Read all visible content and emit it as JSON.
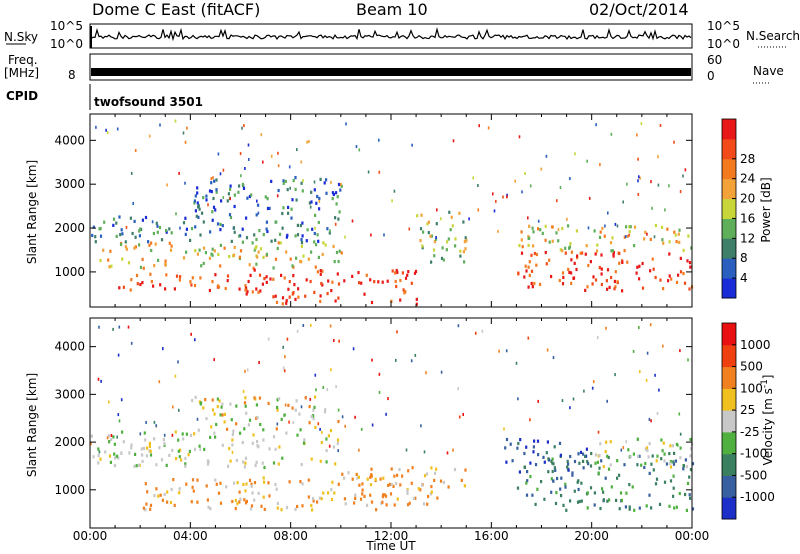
{
  "header": {
    "title": "Dome C East (fitACF)",
    "beam": "Beam 10",
    "date": "02/Oct/2014"
  },
  "status_panels": {
    "nsky_label": "N.Sky",
    "nsky_ticks": [
      "10^5",
      "10^0"
    ],
    "nsearch_label": "N.Search",
    "nsearch_ticks": [
      "10^5",
      "10^0"
    ],
    "freq_label_line1": "Freq.",
    "freq_label_line2": "[MHz]",
    "freq_tick": "8",
    "nave_label": "Nave",
    "nave_ticks": [
      "60",
      "0"
    ],
    "cpid_label": "CPID",
    "cpid_value": "twofsound 3501"
  },
  "chart_data": [
    {
      "type": "heatmap",
      "panel": "power",
      "ylabel": "Slant Range [km]",
      "xlabel": "Time UT",
      "y_ticks": [
        1000,
        2000,
        3000,
        4000
      ],
      "ylim": [
        200,
        4600
      ],
      "x_ticks": [
        "00:00",
        "04:00",
        "08:00",
        "12:00",
        "16:00",
        "20:00",
        "00:00"
      ],
      "x_hours": [
        0,
        24
      ],
      "colorbar": {
        "label": "Power [dB]",
        "ticks": [
          "4",
          "8",
          "12",
          "16",
          "20",
          "24",
          "28"
        ],
        "colors": [
          "#1a2cd8",
          "#2a5fbf",
          "#3f7f6a",
          "#5fae5a",
          "#c8d63a",
          "#f2a238",
          "#f47a20",
          "#f24a18",
          "#e81818"
        ]
      },
      "bands": [
        {
          "t": [
            0.3,
            10.0
          ],
          "r": [
            1100,
            1700
          ],
          "level": "high"
        },
        {
          "t": [
            1.0,
            6.0
          ],
          "r": [
            600,
            1000
          ],
          "level": "very-high"
        },
        {
          "t": [
            6.0,
            13.0
          ],
          "r": [
            300,
            1100
          ],
          "level": "very-high"
        },
        {
          "t": [
            0.0,
            10.0
          ],
          "r": [
            1700,
            2300
          ],
          "level": "low"
        },
        {
          "t": [
            4.0,
            10.0
          ],
          "r": [
            2300,
            3200
          ],
          "level": "low"
        },
        {
          "t": [
            13.0,
            15.0
          ],
          "r": [
            1200,
            2400
          ],
          "level": "mid"
        },
        {
          "t": [
            17.0,
            24.0
          ],
          "r": [
            600,
            1500
          ],
          "level": "very-high"
        },
        {
          "t": [
            17.0,
            24.0
          ],
          "r": [
            1500,
            2100
          ],
          "level": "high"
        }
      ]
    },
    {
      "type": "heatmap",
      "panel": "velocity",
      "ylabel": "Slant Range [km]",
      "xlabel": "Time UT",
      "y_ticks": [
        1000,
        2000,
        3000,
        4000
      ],
      "ylim": [
        200,
        4600
      ],
      "x_ticks": [
        "00:00",
        "04:00",
        "08:00",
        "12:00",
        "16:00",
        "20:00",
        "00:00"
      ],
      "x_hours": [
        0,
        24
      ],
      "colorbar": {
        "label": "Velocity [m s^-1]",
        "ticks": [
          "1000",
          "500",
          "100",
          "25",
          "-25",
          "-100",
          "-500",
          "-1000"
        ],
        "colors": [
          "#1c2fc8",
          "#3860a0",
          "#3a8060",
          "#4fb040",
          "#c8c8c8",
          "#f0c020",
          "#f08020",
          "#f04010",
          "#e81010"
        ]
      },
      "bands": [
        {
          "t": [
            0.0,
            10.0
          ],
          "r": [
            1500,
            2300
          ],
          "level": "neutral"
        },
        {
          "t": [
            2.0,
            12.0
          ],
          "r": [
            600,
            1300
          ],
          "level": "away-mid"
        },
        {
          "t": [
            4.0,
            10.0
          ],
          "r": [
            2300,
            3000
          ],
          "level": "away-low"
        },
        {
          "t": [
            10.0,
            15.0
          ],
          "r": [
            700,
            1500
          ],
          "level": "away-mid"
        },
        {
          "t": [
            17.0,
            24.0
          ],
          "r": [
            600,
            1800
          ],
          "level": "toward-mid"
        },
        {
          "t": [
            16.5,
            20.0
          ],
          "r": [
            1400,
            2100
          ],
          "level": "toward-high"
        },
        {
          "t": [
            20.0,
            24.0
          ],
          "r": [
            1500,
            2100
          ],
          "level": "neutral"
        }
      ]
    }
  ]
}
